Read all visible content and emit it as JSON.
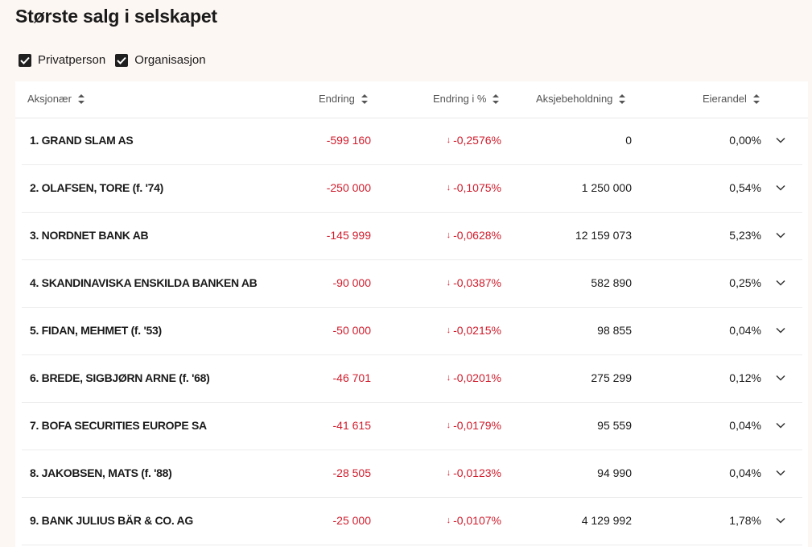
{
  "page": {
    "title": "Største salg i selskapet"
  },
  "filters": [
    {
      "label": "Privatperson",
      "checked": true
    },
    {
      "label": "Organisasjon",
      "checked": true
    }
  ],
  "columns": {
    "shareholder": "Aksjonær",
    "change": "Endring",
    "change_pct": "Endring i %",
    "holding": "Aksjebeholdning",
    "ownership": "Eierandel"
  },
  "rows": [
    {
      "name": "1. GRAND SLAM AS",
      "change": "-599 160",
      "change_pct": "-0,2576%",
      "holding": "0",
      "ownership": "0,00%"
    },
    {
      "name": "2. OLAFSEN, TORE  (f. '74)",
      "change": "-250 000",
      "change_pct": "-0,1075%",
      "holding": "1 250 000",
      "ownership": "0,54%"
    },
    {
      "name": "3. NORDNET BANK AB",
      "change": "-145 999",
      "change_pct": "-0,0628%",
      "holding": "12 159 073",
      "ownership": "5,23%"
    },
    {
      "name": "4. SKANDINAVISKA ENSKILDA BANKEN AB",
      "change": "-90 000",
      "change_pct": "-0,0387%",
      "holding": "582 890",
      "ownership": "0,25%"
    },
    {
      "name": "5. FIDAN, MEHMET  (f. '53)",
      "change": "-50 000",
      "change_pct": "-0,0215%",
      "holding": "98 855",
      "ownership": "0,04%"
    },
    {
      "name": "6. BREDE, SIGBJØRN ARNE  (f. '68)",
      "change": "-46 701",
      "change_pct": "-0,0201%",
      "holding": "275 299",
      "ownership": "0,12%"
    },
    {
      "name": "7. BOFA SECURITIES EUROPE SA",
      "change": "-41 615",
      "change_pct": "-0,0179%",
      "holding": "95 559",
      "ownership": "0,04%"
    },
    {
      "name": "8. JAKOBSEN, MATS  (f. '88)",
      "change": "-28 505",
      "change_pct": "-0,0123%",
      "holding": "94 990",
      "ownership": "0,04%"
    },
    {
      "name": "9. BANK JULIUS BÄR & CO. AG",
      "change": "-25 000",
      "change_pct": "-0,0107%",
      "holding": "4 129 992",
      "ownership": "1,78%"
    }
  ],
  "icons": {
    "checkbox": "checkmark-icon",
    "sort": "sort-updown-icon",
    "expand": "chevron-down-icon",
    "decrease": "arrow-down-icon"
  },
  "colors": {
    "negative": "#d01c2c",
    "background": "#fdf7f3"
  }
}
